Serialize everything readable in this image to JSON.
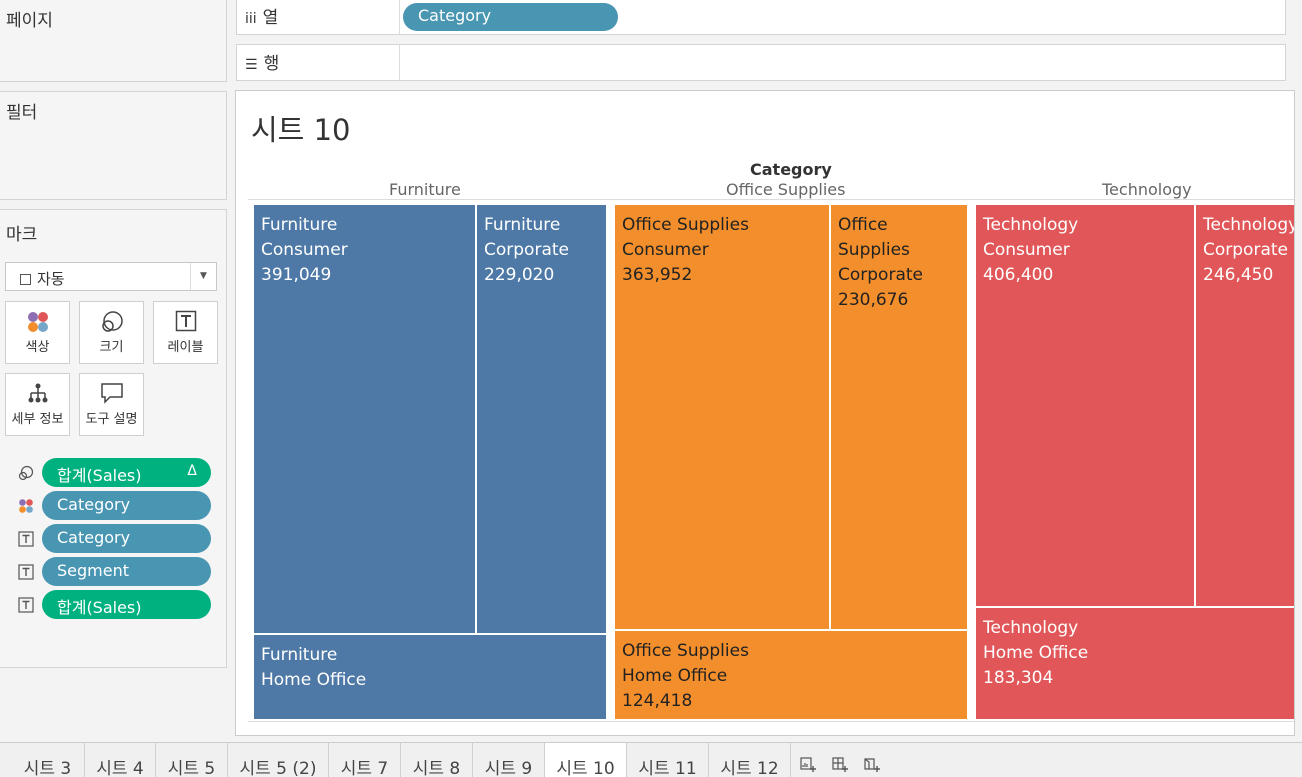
{
  "panels": {
    "pages_title": "페이지",
    "filters_title": "필터",
    "marks_title": "마크"
  },
  "marks": {
    "type": "자동",
    "buttons": {
      "color": "색상",
      "size": "크기",
      "label": "레이블",
      "detail": "세부 정보",
      "tooltip": "도구 설명"
    },
    "pills": [
      {
        "text": "합계(Sales)",
        "kind": "measure",
        "icon": "size-icon",
        "delta": "Δ"
      },
      {
        "text": "Category",
        "kind": "dimension",
        "icon": "color-icon"
      },
      {
        "text": "Category",
        "kind": "dimension",
        "icon": "label-icon"
      },
      {
        "text": "Segment",
        "kind": "dimension",
        "icon": "label-icon"
      },
      {
        "text": "합계(Sales)",
        "kind": "measure",
        "icon": "label-icon"
      }
    ]
  },
  "shelves": {
    "columns_label": "열",
    "rows_label": "행",
    "columns_pill": "Category"
  },
  "view": {
    "title": "시트 10",
    "header": "Category",
    "categories": [
      "Furniture",
      "Office Supplies",
      "Technology"
    ]
  },
  "colors": {
    "furniture": "#4e79a7",
    "office_supplies": "#f28e2b",
    "technology": "#e15759",
    "dimension_pill": "#4996b2",
    "measure_pill": "#00b180"
  },
  "chart_data": {
    "type": "treemap",
    "title": "시트 10",
    "tiles": [
      {
        "category": "Furniture",
        "segment": "Consumer",
        "value": "391,049"
      },
      {
        "category": "Furniture",
        "segment": "Corporate",
        "value": "229,020"
      },
      {
        "category": "Furniture",
        "segment": "Home Office",
        "value": ""
      },
      {
        "category": "Office Supplies",
        "segment": "Consumer",
        "value": "363,952"
      },
      {
        "category": "Office Supplies",
        "segment": "Corporate",
        "value": "230,676"
      },
      {
        "category": "Office Supplies",
        "segment": "Home Office",
        "value": "124,418"
      },
      {
        "category": "Technology",
        "segment": "Consumer",
        "value": "406,400"
      },
      {
        "category": "Technology",
        "segment": "Corporate",
        "value": "246,450"
      },
      {
        "category": "Technology",
        "segment": "Home Office",
        "value": "183,304"
      }
    ]
  },
  "tabs": [
    "시트 3",
    "시트 4",
    "시트 5",
    "시트 5 (2)",
    "시트 7",
    "시트 8",
    "시트 9",
    "시트 10",
    "시트 11",
    "시트 12"
  ],
  "active_tab": "시트 10",
  "tab_actions": [
    "new-worksheet-icon",
    "new-dashboard-icon",
    "new-story-icon"
  ]
}
